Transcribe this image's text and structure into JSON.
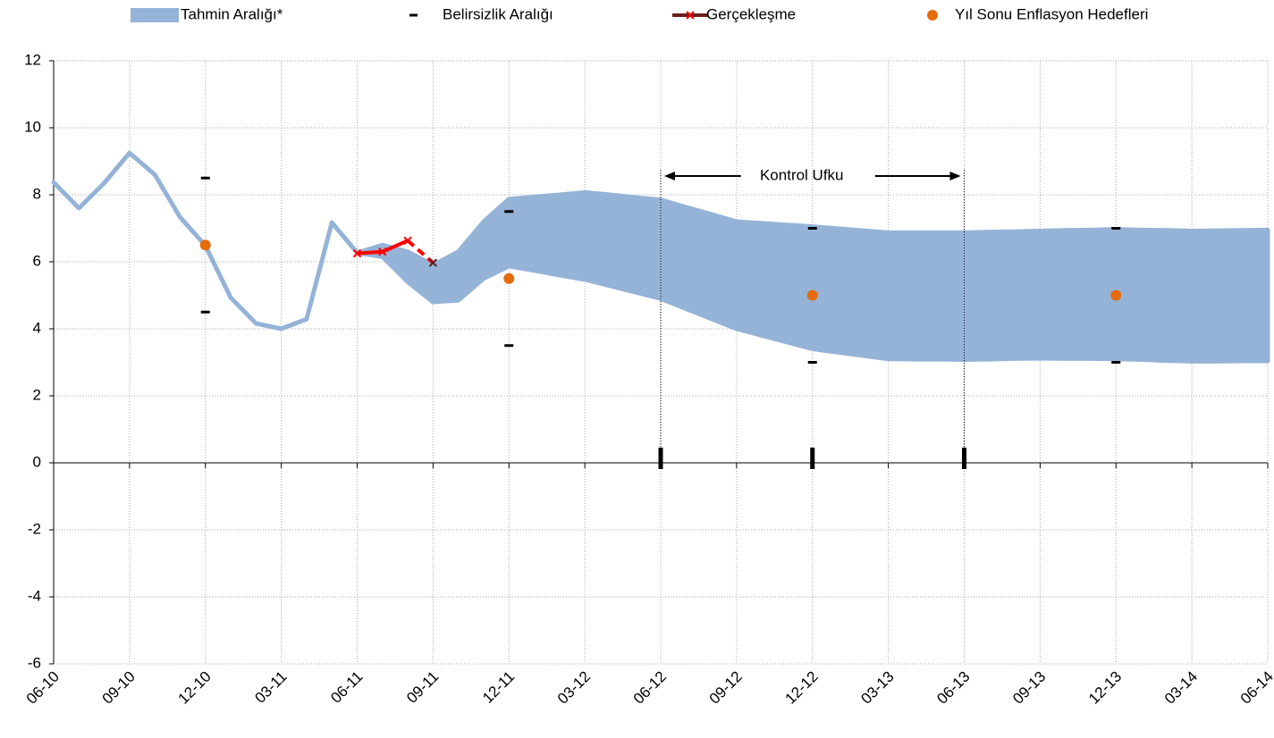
{
  "chart_data": {
    "type": "fan",
    "categories": [
      "06-10",
      null,
      null,
      "09-10",
      null,
      null,
      "12-10",
      null,
      null,
      "03-11",
      null,
      null,
      "06-11",
      null,
      null,
      "09-11",
      null,
      null,
      "12-11",
      null,
      null,
      "03-12",
      null,
      null,
      "06-12",
      null,
      null,
      "09-12",
      null,
      null,
      "12-12",
      null,
      null,
      "03-13",
      null,
      null,
      "06-13",
      null,
      null,
      "09-13",
      null,
      null,
      "12-13",
      null,
      null,
      "03-14",
      null,
      null,
      "06-14"
    ],
    "ylim": [
      -6,
      12
    ],
    "yticks": [
      -6,
      -4,
      -2,
      0,
      2,
      4,
      6,
      8,
      10,
      12
    ],
    "grid": true,
    "band": {
      "name": "Tahmin Aralığı*",
      "color": "#95b3d7",
      "upper": [
        8.37,
        7.6,
        8.35,
        9.25,
        8.6,
        7.33,
        6.48,
        4.93,
        4.16,
        4.0,
        4.29,
        7.17,
        6.27,
        6.5,
        6.3,
        5.9,
        6.3,
        7.2,
        7.87,
        7.94,
        8.0,
        8.07,
        8.0,
        7.92,
        7.85,
        7.63,
        7.42,
        7.2,
        7.15,
        7.1,
        7.05,
        6.99,
        6.93,
        6.87,
        6.87,
        6.87,
        6.87,
        6.89,
        6.9,
        6.92,
        6.94,
        6.95,
        6.97,
        6.95,
        6.94,
        6.92,
        6.93,
        6.94,
        6.95
      ],
      "lower": [
        8.37,
        7.6,
        8.35,
        9.25,
        8.6,
        7.33,
        6.48,
        4.93,
        4.16,
        4.0,
        4.29,
        7.17,
        6.27,
        6.15,
        5.4,
        4.8,
        4.85,
        5.5,
        5.87,
        5.74,
        5.6,
        5.47,
        5.28,
        5.09,
        4.9,
        4.6,
        4.3,
        4.0,
        3.8,
        3.6,
        3.4,
        3.3,
        3.2,
        3.1,
        3.09,
        3.09,
        3.08,
        3.09,
        3.11,
        3.12,
        3.11,
        3.11,
        3.1,
        3.08,
        3.05,
        3.03,
        3.03,
        3.04,
        3.04
      ]
    },
    "uncertainty": {
      "name": "Belirsizlik Aralığı",
      "color": "#000000",
      "x": [
        "12-10",
        "12-11",
        "12-12",
        "12-13"
      ],
      "upper": [
        8.5,
        7.5,
        7.0,
        7.0
      ],
      "lower": [
        4.5,
        3.5,
        3.0,
        3.0
      ]
    },
    "realized": {
      "name": "Gerçekleşme",
      "color": "#ff0000",
      "values": [
        null,
        null,
        null,
        null,
        null,
        null,
        null,
        null,
        null,
        null,
        null,
        null,
        6.25,
        6.3,
        6.63,
        5.97,
        null,
        null,
        null,
        null,
        null,
        null,
        null,
        null,
        null,
        null,
        null,
        null,
        null,
        null,
        null,
        null,
        null,
        null,
        null,
        null,
        null,
        null,
        null,
        null,
        null,
        null,
        null,
        null,
        null,
        null,
        null,
        null,
        null
      ]
    },
    "targets": {
      "name": "Yıl Sonu Enflasyon Hedefleri",
      "color": "#e46c0a",
      "x": [
        "12-10",
        "12-11",
        "12-12",
        "12-13"
      ],
      "values": [
        6.5,
        5.5,
        5,
        5
      ]
    },
    "control_horizon": {
      "label": "Kontrol Ufku",
      "x": [
        "06-12",
        "06-13"
      ]
    },
    "axis_marks": [
      "06-12",
      "12-12",
      "06-13"
    ]
  }
}
